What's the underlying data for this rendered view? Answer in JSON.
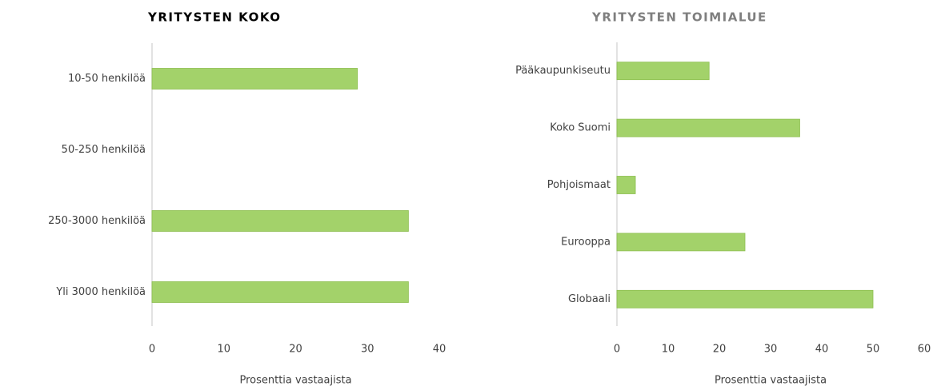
{
  "chart_data": [
    {
      "type": "bar",
      "title": "YRITYSTEN KOKO",
      "title_color": "#000000",
      "categories": [
        "10-50 henkilöä",
        "50-250 henkilöä",
        "250-3000 henkilöä",
        "Yli 3000 henkilöä"
      ],
      "values": [
        28.6,
        0,
        35.7,
        35.7
      ],
      "color": "#a3d26a",
      "xlim": [
        0,
        40
      ],
      "xticks": [
        0,
        10,
        20,
        30,
        40
      ],
      "xlabel": "Prosenttia vastaajista"
    },
    {
      "type": "bar",
      "title": "YRITYSTEN TOIMIALUE",
      "title_color": "#7f7f7f",
      "categories": [
        "Pääkaupunkiseutu",
        "Koko Suomi",
        "Pohjoismaat",
        "Eurooppa",
        "Globaali"
      ],
      "values": [
        18,
        35.7,
        3.6,
        25,
        50
      ],
      "color": "#a3d26a",
      "xlim": [
        0,
        60
      ],
      "xticks": [
        0,
        10,
        20,
        30,
        40,
        50,
        60
      ],
      "xlabel": "Prosenttia vastaajista"
    }
  ]
}
